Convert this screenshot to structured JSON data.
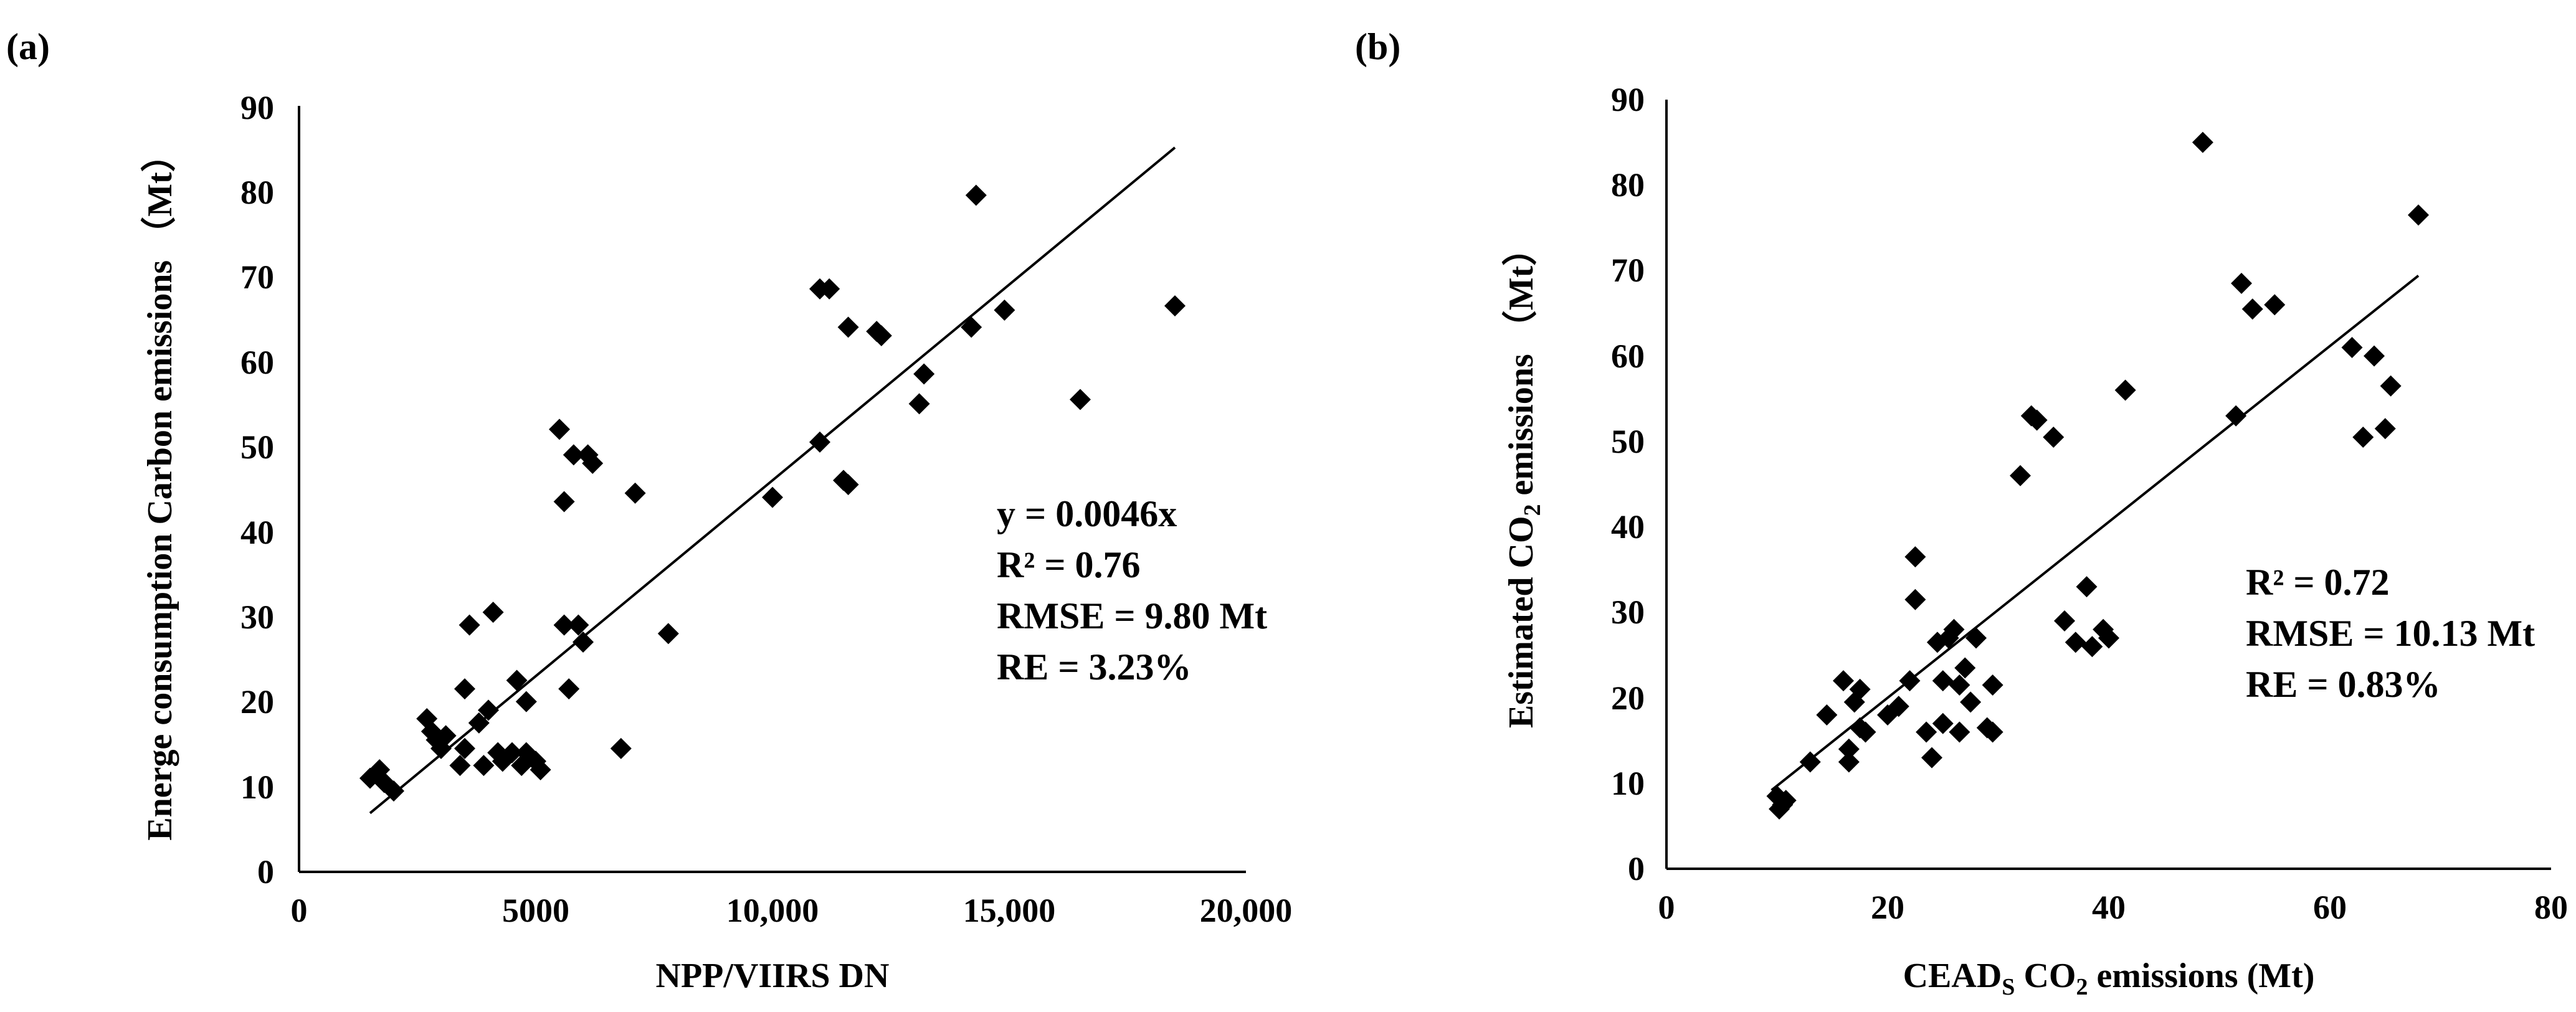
{
  "figure": {
    "panels": [
      {
        "label": "(a)",
        "xlabel": "NPP/VIIRS DN",
        "ylabel": "Energe consumption Carbon emissions （Mt）",
        "xticks": [
          "0",
          "5000",
          "10,000",
          "15,000",
          "20,000"
        ],
        "yticks": [
          "0",
          "10",
          "20",
          "30",
          "40",
          "50",
          "60",
          "70",
          "80",
          "90"
        ],
        "stats": [
          "y = 0.0046x",
          "R² = 0.76",
          "RMSE = 9.80 Mt",
          "RE = 3.23%"
        ]
      },
      {
        "label": "(b)",
        "xlabel": {
          "pre": "CEAD",
          "sub1": "S",
          "mid": " CO",
          "sub2": "2",
          "post": " emissions (Mt)"
        },
        "ylabel": {
          "pre": "Estimated CO",
          "sub": "2",
          "post": " emissions （Mt）"
        },
        "xticks": [
          "0",
          "20",
          "40",
          "60",
          "80"
        ],
        "yticks": [
          "0",
          "10",
          "20",
          "30",
          "40",
          "50",
          "60",
          "70",
          "80",
          "90"
        ],
        "stats": [
          "R² = 0.72",
          "RMSE = 10.13 Mt",
          "RE = 0.83%"
        ]
      }
    ]
  },
  "chart_data": [
    {
      "type": "scatter",
      "title": "(a)",
      "xlabel": "NPP/VIIRS DN",
      "ylabel": "Energe consumption Carbon emissions （Mt）",
      "xlim": [
        0,
        20000
      ],
      "ylim": [
        0,
        90
      ],
      "marker": "diamond",
      "trendline": {
        "x": [
          1500,
          18500
        ],
        "y": [
          6.9,
          85.1
        ]
      },
      "points": [
        [
          1500,
          11
        ],
        [
          1700,
          12
        ],
        [
          1800,
          10.5
        ],
        [
          2000,
          9.5
        ],
        [
          2700,
          18
        ],
        [
          2800,
          16.5
        ],
        [
          2900,
          15.5
        ],
        [
          3000,
          14.5
        ],
        [
          3100,
          16
        ],
        [
          3400,
          12.5
        ],
        [
          3500,
          21.5
        ],
        [
          3500,
          14.5
        ],
        [
          3600,
          29
        ],
        [
          3800,
          17.5
        ],
        [
          3900,
          12.5
        ],
        [
          4000,
          19
        ],
        [
          4100,
          30.5
        ],
        [
          4200,
          14
        ],
        [
          4300,
          13
        ],
        [
          4500,
          14
        ],
        [
          4600,
          22.5
        ],
        [
          4700,
          12.5
        ],
        [
          4800,
          20
        ],
        [
          4800,
          14
        ],
        [
          5000,
          13
        ],
        [
          5100,
          12
        ],
        [
          5500,
          52
        ],
        [
          5600,
          43.5
        ],
        [
          5600,
          29
        ],
        [
          5700,
          21.5
        ],
        [
          5800,
          49
        ],
        [
          5900,
          29
        ],
        [
          6000,
          27
        ],
        [
          6100,
          49
        ],
        [
          6200,
          48
        ],
        [
          6800,
          14.5
        ],
        [
          7100,
          44.5
        ],
        [
          7800,
          28
        ],
        [
          10000,
          44
        ],
        [
          11000,
          68.5
        ],
        [
          11000,
          50.5
        ],
        [
          11200,
          68.5
        ],
        [
          11500,
          46
        ],
        [
          11600,
          45.5
        ],
        [
          11600,
          64
        ],
        [
          12200,
          63.5
        ],
        [
          12300,
          63
        ],
        [
          13100,
          55
        ],
        [
          13200,
          58.5
        ],
        [
          14200,
          64
        ],
        [
          14300,
          79.5
        ],
        [
          14900,
          66
        ],
        [
          16500,
          55.5
        ],
        [
          18500,
          66.5
        ]
      ],
      "annotations": [
        "y = 0.0046x",
        "R² = 0.76",
        "RMSE = 9.80 Mt",
        "RE = 3.23%"
      ]
    },
    {
      "type": "scatter",
      "title": "(b)",
      "xlabel": "CEADS CO2 emissions (Mt)",
      "ylabel": "Estimated CO2 emissions （Mt）",
      "xlim": [
        0,
        80
      ],
      "ylim": [
        0,
        90
      ],
      "marker": "diamond",
      "trendline": {
        "x": [
          9.5,
          68
        ],
        "y": [
          9.2,
          69.4
        ]
      },
      "points": [
        [
          10,
          8.5
        ],
        [
          10.2,
          7
        ],
        [
          10.5,
          7.5
        ],
        [
          10.8,
          8
        ],
        [
          13,
          12.5
        ],
        [
          14.5,
          18
        ],
        [
          16,
          22
        ],
        [
          16.5,
          14
        ],
        [
          16.5,
          12.5
        ],
        [
          17,
          19.5
        ],
        [
          17.5,
          21
        ],
        [
          17.5,
          16.5
        ],
        [
          18,
          16
        ],
        [
          20,
          18
        ],
        [
          21,
          19
        ],
        [
          22,
          22
        ],
        [
          22.5,
          36.5
        ],
        [
          22.5,
          31.5
        ],
        [
          23.5,
          16
        ],
        [
          24,
          13
        ],
        [
          24.5,
          26.5
        ],
        [
          25,
          22
        ],
        [
          25,
          17
        ],
        [
          25.5,
          27
        ],
        [
          26,
          28
        ],
        [
          26.5,
          21.5
        ],
        [
          26.5,
          16
        ],
        [
          27,
          23.5
        ],
        [
          27.5,
          19.5
        ],
        [
          28,
          27
        ],
        [
          29,
          16.5
        ],
        [
          29.5,
          16
        ],
        [
          29.5,
          21.5
        ],
        [
          32,
          46
        ],
        [
          33,
          53
        ],
        [
          33.5,
          52.5
        ],
        [
          35,
          50.5
        ],
        [
          36,
          29
        ],
        [
          37,
          26.5
        ],
        [
          38,
          33
        ],
        [
          38.5,
          26
        ],
        [
          39.5,
          28
        ],
        [
          40,
          27
        ],
        [
          41.5,
          56
        ],
        [
          48.5,
          85
        ],
        [
          51.5,
          53
        ],
        [
          52,
          68.5
        ],
        [
          53,
          65.5
        ],
        [
          55,
          66
        ],
        [
          62,
          61
        ],
        [
          63,
          50.5
        ],
        [
          64,
          60
        ],
        [
          65,
          51.5
        ],
        [
          65.5,
          56.5
        ],
        [
          68,
          76.5
        ]
      ],
      "annotations": [
        "R² = 0.72",
        "RMSE = 10.13 Mt",
        "RE = 0.83%"
      ]
    }
  ]
}
